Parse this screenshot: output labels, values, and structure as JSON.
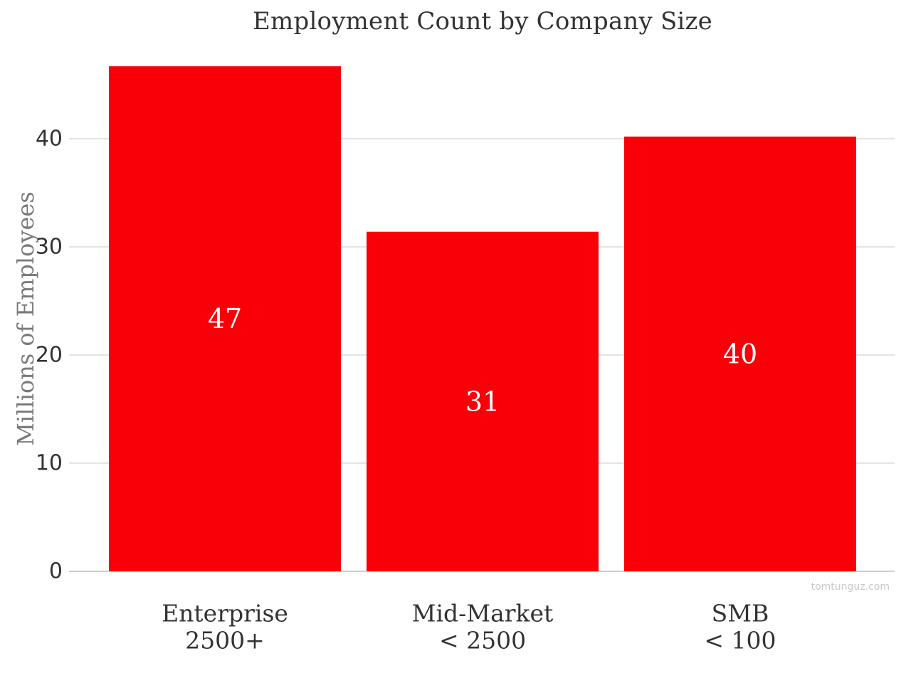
{
  "chart_data": {
    "type": "bar",
    "title": "Employment Count by Company Size",
    "ylabel": "Millions of Employees",
    "xlabel": "",
    "categories": [
      [
        "Enterprise",
        "2500+"
      ],
      [
        "Mid-Market",
        "< 2500"
      ],
      [
        "SMB",
        "< 100"
      ]
    ],
    "values": [
      46.7,
      31.4,
      40.2
    ],
    "data_labels": [
      "47",
      "31",
      "40"
    ],
    "yticks": [
      0,
      10,
      20,
      30,
      40
    ],
    "ylim": [
      0,
      48.3
    ],
    "grid": true,
    "bar_color": "#f90008",
    "label_color": "#ffffff",
    "grid_color": "#c9c9c9",
    "axis_text_color": "#333333"
  },
  "watermark": "tomtunguz.com"
}
